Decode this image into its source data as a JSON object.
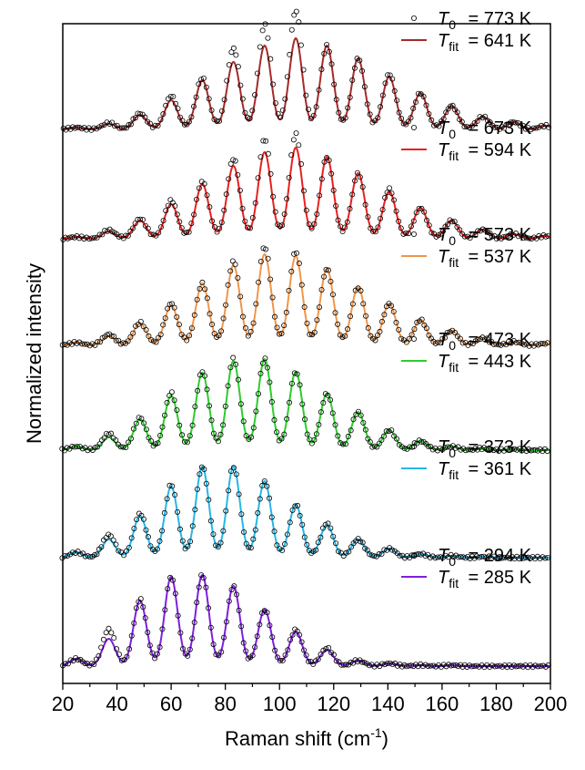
{
  "chart_data": {
    "type": "line",
    "xlabel": "Raman shift (cm",
    "xlabel_sup": "-1",
    "xlabel_close": ")",
    "ylabel": "Normalized intensity",
    "xlim": [
      20,
      200
    ],
    "xticks": [
      20,
      40,
      60,
      80,
      100,
      120,
      140,
      160,
      180,
      200
    ],
    "xtick_labels": [
      "20",
      "40",
      "60",
      "80",
      "100",
      "120",
      "140",
      "160",
      "180",
      "200"
    ],
    "grid": false,
    "legend_placement": "top-right of each trace",
    "peak_positions": [
      25,
      37,
      48.5,
      60,
      71.5,
      83,
      94.5,
      106,
      117.5,
      129,
      140.5,
      152,
      163.5,
      175,
      186.5,
      198
    ],
    "series": [
      {
        "T0": "773 K",
        "Tfit": "641 K",
        "color": "#A52A2A",
        "peaks": [
          0.02,
          0.06,
          0.16,
          0.32,
          0.54,
          0.74,
          0.92,
          1.0,
          0.92,
          0.78,
          0.58,
          0.4,
          0.26,
          0.14,
          0.08,
          0.04
        ],
        "data_scale": [
          1.0,
          1.2,
          1.1,
          1.15,
          1.05,
          1.2,
          1.25,
          1.3,
          1.0,
          1.0,
          1.05,
          1.0,
          1.0,
          1.0,
          1.0,
          1.0
        ]
      },
      {
        "T0": "673 K",
        "Tfit": "594 K",
        "color": "#E8211F",
        "peaks": [
          0.02,
          0.08,
          0.2,
          0.38,
          0.6,
          0.8,
          0.95,
          1.0,
          0.9,
          0.72,
          0.52,
          0.34,
          0.2,
          0.1,
          0.05,
          0.03
        ],
        "data_scale": [
          1.0,
          1.2,
          1.1,
          1.1,
          1.05,
          1.1,
          1.15,
          1.15,
          1.0,
          1.0,
          1.05,
          1.0,
          1.0,
          1.0,
          1.0,
          1.0
        ]
      },
      {
        "T0": "573 K",
        "Tfit": "537 K",
        "color": "#F0964A",
        "peaks": [
          0.03,
          0.1,
          0.24,
          0.44,
          0.68,
          0.88,
          1.0,
          0.98,
          0.84,
          0.64,
          0.46,
          0.28,
          0.16,
          0.08,
          0.04,
          0.02
        ],
        "data_scale": [
          1.0,
          1.2,
          1.05,
          1.05,
          1.0,
          1.05,
          1.08,
          1.05,
          1.0,
          1.0,
          1.0,
          1.0,
          1.0,
          1.0,
          1.0,
          1.0
        ]
      },
      {
        "T0": "473 K",
        "Tfit": "443 K",
        "color": "#2ECC2E",
        "peaks": [
          0.04,
          0.14,
          0.34,
          0.6,
          0.85,
          0.98,
          1.0,
          0.86,
          0.62,
          0.42,
          0.22,
          0.1,
          0.04,
          0.02,
          0.01,
          0.0
        ],
        "data_scale": [
          1.0,
          1.3,
          1.05,
          1.05,
          1.02,
          1.03,
          1.0,
          1.0,
          1.0,
          1.0,
          1.0,
          1.0,
          1.0,
          1.0,
          1.0,
          1.0
        ]
      },
      {
        "T0": "373 K",
        "Tfit": "361 K",
        "color": "#25B7E8",
        "peaks": [
          0.06,
          0.2,
          0.46,
          0.78,
          1.0,
          1.0,
          0.84,
          0.58,
          0.36,
          0.2,
          0.1,
          0.04,
          0.02,
          0.01,
          0.0,
          0.0
        ],
        "data_scale": [
          1.0,
          1.25,
          1.05,
          1.03,
          1.0,
          1.0,
          1.0,
          1.0,
          1.05,
          1.0,
          1.0,
          1.0,
          1.0,
          1.0,
          1.0,
          1.0
        ]
      },
      {
        "T0": "294 K",
        "Tfit": "285 K",
        "color": "#7F1FE0",
        "peaks": [
          0.08,
          0.3,
          0.72,
          0.98,
          1.0,
          0.88,
          0.62,
          0.38,
          0.18,
          0.06,
          0.03,
          0.01,
          0.01,
          0.0,
          0.0,
          0.0
        ],
        "data_scale": [
          1.0,
          1.35,
          1.02,
          1.0,
          1.0,
          1.0,
          1.0,
          1.05,
          1.1,
          1.0,
          1.0,
          1.0,
          1.0,
          1.0,
          1.0,
          1.0
        ]
      }
    ],
    "legend": {
      "marker_label": "T",
      "marker_sub": "0",
      "line_label": "T",
      "line_sub": "fit"
    }
  }
}
